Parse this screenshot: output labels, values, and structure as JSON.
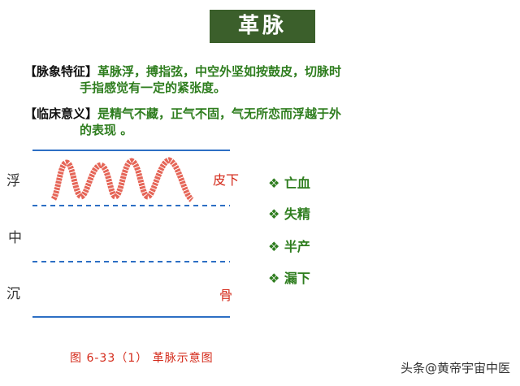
{
  "header": {
    "title": "革脉"
  },
  "sections": [
    {
      "label": "【脉象特征】",
      "lines": [
        "革脉浮，搏指弦，中空外坚如按鼓皮，切脉时",
        "手指感觉有一定的紧张度。"
      ]
    },
    {
      "label": "【临床意义】",
      "lines": [
        "是精气不藏，正气不固，气无所恋而浮越于外",
        "的表现 。"
      ]
    }
  ],
  "diagram": {
    "levels": [
      "浮",
      "中",
      "沉"
    ],
    "skin_label": "皮下",
    "bone_label": "骨",
    "caption": "图 6-33（1） 革脉示意图"
  },
  "bullets": [
    "❖ 亡血",
    "❖ 失精",
    "❖ 半产",
    "❖ 漏下"
  ],
  "watermark": "头条@黄帝宇宙中医"
}
